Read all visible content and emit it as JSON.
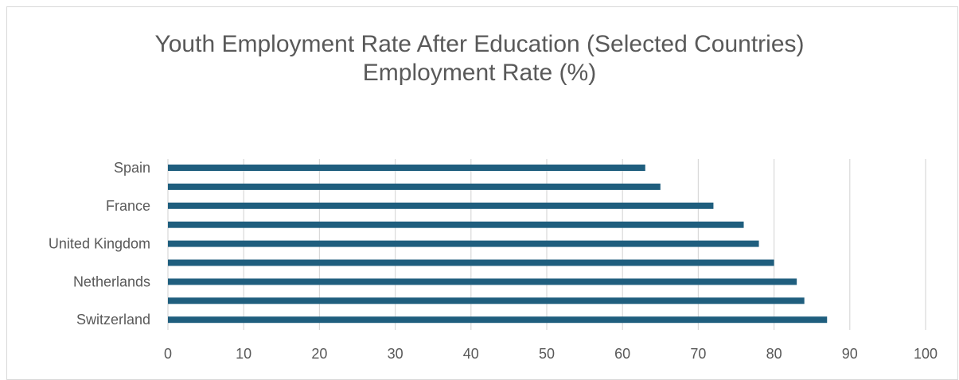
{
  "chart_data": {
    "type": "bar",
    "orientation": "horizontal",
    "title": "Youth Employment Rate After Education (Selected Countries)",
    "subtitle": "Employment Rate (%)",
    "categories": [
      "Spain",
      "",
      "France",
      "",
      "United Kingdom",
      "",
      "Netherlands",
      "",
      "Switzerland"
    ],
    "values": [
      63,
      65,
      72,
      76,
      78,
      80,
      83,
      84,
      87
    ],
    "xlim": [
      0,
      100
    ],
    "x_ticks": [
      0,
      10,
      20,
      30,
      40,
      50,
      60,
      70,
      80,
      90,
      100
    ],
    "grid": true,
    "legend": "none",
    "bar_color": "#1f5e7e",
    "grid_color": "#d9d9d9",
    "text_color": "#595959"
  }
}
